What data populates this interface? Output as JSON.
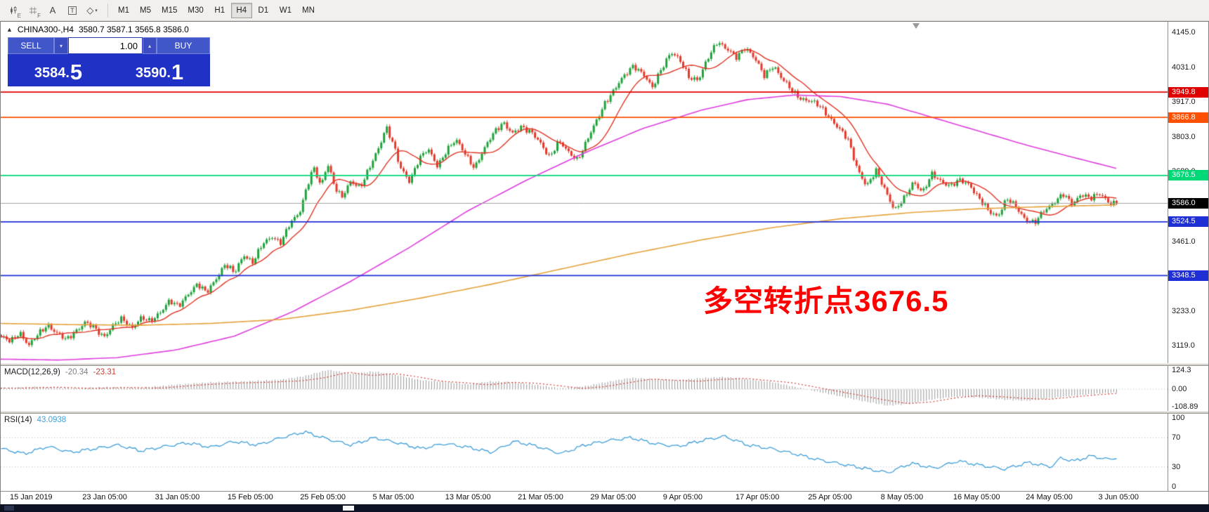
{
  "toolbar": {
    "icons": [
      {
        "name": "candlestick-tool-icon",
        "sub": "E"
      },
      {
        "name": "grid-tool-icon",
        "sub": "F"
      },
      {
        "name": "text-label-tool-icon",
        "glyph": "A"
      },
      {
        "name": "text-box-tool-icon",
        "glyph": "T",
        "boxed": true
      },
      {
        "name": "draw-tools-icon",
        "glyph": "◇",
        "caret": "▾"
      }
    ],
    "timeframes": [
      "M1",
      "M5",
      "M15",
      "M30",
      "H1",
      "H4",
      "D1",
      "W1",
      "MN"
    ],
    "active_timeframe": "H4"
  },
  "quote": {
    "collapse": "▲",
    "symbol": "CHINA300-,H4",
    "ohlc": "3580.7 3587.1 3565.8 3586.0"
  },
  "trade_panel": {
    "sell_label": "SELL",
    "buy_label": "BUY",
    "volume": "1.00",
    "spin_down": "▾",
    "spin_up": "▴",
    "sell_price": {
      "main": "3584.",
      "big": "5"
    },
    "buy_price": {
      "main": "3590.",
      "big": "1"
    }
  },
  "annotation": {
    "text": "多空转折点3676.5",
    "color": "#ff0000"
  },
  "chart_data": {
    "type": "candlestick",
    "symbol": "CHINA300-",
    "timeframe": "H4",
    "ohlc": {
      "open": 3580.7,
      "high": 3587.1,
      "low": 3565.8,
      "close": 3586.0
    },
    "y_axis": {
      "range": [
        3062,
        4180
      ],
      "tick_values": [
        4145,
        4031,
        3917,
        3803,
        3689,
        3575,
        3461,
        3347,
        3233,
        3119
      ],
      "ticks": [
        "4145.0",
        "4031.0",
        "3917.0",
        "3803.0",
        "3689.0",
        "3575.0",
        "3461.0",
        "3347.0",
        "3233.0",
        "3119.0"
      ]
    },
    "x_labels": [
      "15 Jan 2019",
      "23 Jan 05:00",
      "31 Jan 05:00",
      "15 Feb 05:00",
      "25 Feb 05:00",
      "5 Mar 05:00",
      "13 Mar 05:00",
      "21 Mar 05:00",
      "29 Mar 05:00",
      "9 Apr 05:00",
      "17 Apr 05:00",
      "25 Apr 05:00",
      "8 May 05:00",
      "16 May 05:00",
      "24 May 05:00",
      "3 Jun 05:00"
    ],
    "hlines": [
      {
        "price": 3949.8,
        "label": "3949.8",
        "color": "#e00000"
      },
      {
        "price": 3866.8,
        "label": "3866.8",
        "color": "#ff4f00"
      },
      {
        "price": 3676.5,
        "label": "3676.5",
        "color": "#00d878"
      },
      {
        "price": 3524.5,
        "label": "3524.5",
        "color": "#1f2fd6"
      },
      {
        "price": 3348.5,
        "label": "3348.5",
        "color": "#1f2fd6"
      }
    ],
    "current_price": {
      "value": 3586.0,
      "label": "3586.0",
      "badge_color": "#000000"
    },
    "colors": {
      "up": "#1fa13a",
      "down": "#e2392b",
      "ma_fast": "#e03424",
      "ma_mid": "#df3ddf",
      "ma_slow": "#e5a23b",
      "macd_bar": "#969696",
      "macd_signal": "#d23b2f",
      "rsi": "#3f9fd9",
      "current_line": "#a0a0a0",
      "level_line": "#b5b5b5"
    },
    "close_path": [
      [
        0,
        3148
      ],
      [
        0.008,
        3130
      ],
      [
        0.016,
        3165
      ],
      [
        0.024,
        3120
      ],
      [
        0.032,
        3155
      ],
      [
        0.04,
        3190
      ],
      [
        0.048,
        3160
      ],
      [
        0.056,
        3135
      ],
      [
        0.064,
        3170
      ],
      [
        0.072,
        3195
      ],
      [
        0.08,
        3175
      ],
      [
        0.088,
        3150
      ],
      [
        0.096,
        3185
      ],
      [
        0.104,
        3205
      ],
      [
        0.112,
        3180
      ],
      [
        0.12,
        3210
      ],
      [
        0.128,
        3195
      ],
      [
        0.136,
        3230
      ],
      [
        0.144,
        3265
      ],
      [
        0.152,
        3245
      ],
      [
        0.16,
        3290
      ],
      [
        0.168,
        3320
      ],
      [
        0.176,
        3290
      ],
      [
        0.184,
        3340
      ],
      [
        0.192,
        3385
      ],
      [
        0.2,
        3355
      ],
      [
        0.208,
        3420
      ],
      [
        0.216,
        3390
      ],
      [
        0.224,
        3450
      ],
      [
        0.232,
        3480
      ],
      [
        0.24,
        3455
      ],
      [
        0.248,
        3520
      ],
      [
        0.256,
        3560
      ],
      [
        0.262,
        3640
      ],
      [
        0.268,
        3700
      ],
      [
        0.274,
        3640
      ],
      [
        0.28,
        3720
      ],
      [
        0.286,
        3640
      ],
      [
        0.292,
        3600
      ],
      [
        0.3,
        3660
      ],
      [
        0.308,
        3640
      ],
      [
        0.316,
        3700
      ],
      [
        0.324,
        3770
      ],
      [
        0.33,
        3840
      ],
      [
        0.336,
        3780
      ],
      [
        0.342,
        3700
      ],
      [
        0.35,
        3660
      ],
      [
        0.358,
        3730
      ],
      [
        0.366,
        3760
      ],
      [
        0.374,
        3710
      ],
      [
        0.382,
        3760
      ],
      [
        0.39,
        3790
      ],
      [
        0.398,
        3750
      ],
      [
        0.406,
        3700
      ],
      [
        0.414,
        3760
      ],
      [
        0.422,
        3820
      ],
      [
        0.43,
        3850
      ],
      [
        0.438,
        3810
      ],
      [
        0.446,
        3840
      ],
      [
        0.454,
        3820
      ],
      [
        0.462,
        3780
      ],
      [
        0.47,
        3740
      ],
      [
        0.478,
        3790
      ],
      [
        0.486,
        3750
      ],
      [
        0.494,
        3730
      ],
      [
        0.502,
        3790
      ],
      [
        0.51,
        3850
      ],
      [
        0.518,
        3920
      ],
      [
        0.526,
        3960
      ],
      [
        0.534,
        4000
      ],
      [
        0.542,
        4040
      ],
      [
        0.55,
        4010
      ],
      [
        0.558,
        3960
      ],
      [
        0.566,
        4030
      ],
      [
        0.574,
        4080
      ],
      [
        0.582,
        4050
      ],
      [
        0.59,
        4000
      ],
      [
        0.598,
        3990
      ],
      [
        0.606,
        4060
      ],
      [
        0.614,
        4120
      ],
      [
        0.622,
        4090
      ],
      [
        0.63,
        4060
      ],
      [
        0.638,
        4100
      ],
      [
        0.646,
        4060
      ],
      [
        0.654,
        4000
      ],
      [
        0.662,
        4040
      ],
      [
        0.67,
        3990
      ],
      [
        0.678,
        3950
      ],
      [
        0.686,
        3930
      ],
      [
        0.694,
        3920
      ],
      [
        0.702,
        3900
      ],
      [
        0.71,
        3870
      ],
      [
        0.718,
        3830
      ],
      [
        0.726,
        3790
      ],
      [
        0.734,
        3700
      ],
      [
        0.742,
        3640
      ],
      [
        0.75,
        3690
      ],
      [
        0.758,
        3630
      ],
      [
        0.766,
        3560
      ],
      [
        0.774,
        3600
      ],
      [
        0.782,
        3660
      ],
      [
        0.79,
        3620
      ],
      [
        0.798,
        3680
      ],
      [
        0.806,
        3660
      ],
      [
        0.814,
        3640
      ],
      [
        0.822,
        3660
      ],
      [
        0.83,
        3650
      ],
      [
        0.838,
        3600
      ],
      [
        0.846,
        3560
      ],
      [
        0.854,
        3545
      ],
      [
        0.862,
        3600
      ],
      [
        0.87,
        3570
      ],
      [
        0.878,
        3535
      ],
      [
        0.886,
        3520
      ],
      [
        0.894,
        3560
      ],
      [
        0.902,
        3590
      ],
      [
        0.91,
        3615
      ],
      [
        0.918,
        3580
      ],
      [
        0.926,
        3620
      ],
      [
        0.934,
        3600
      ],
      [
        0.942,
        3615
      ],
      [
        0.95,
        3590
      ],
      [
        0.956,
        3586
      ]
    ],
    "ma_mid_path": [
      [
        0,
        3075
      ],
      [
        0.05,
        3072
      ],
      [
        0.1,
        3080
      ],
      [
        0.15,
        3105
      ],
      [
        0.2,
        3150
      ],
      [
        0.25,
        3230
      ],
      [
        0.3,
        3330
      ],
      [
        0.35,
        3440
      ],
      [
        0.4,
        3560
      ],
      [
        0.45,
        3660
      ],
      [
        0.5,
        3750
      ],
      [
        0.55,
        3830
      ],
      [
        0.6,
        3890
      ],
      [
        0.64,
        3925
      ],
      [
        0.68,
        3940
      ],
      [
        0.72,
        3935
      ],
      [
        0.76,
        3910
      ],
      [
        0.8,
        3865
      ],
      [
        0.84,
        3820
      ],
      [
        0.88,
        3775
      ],
      [
        0.92,
        3735
      ],
      [
        0.956,
        3700
      ]
    ],
    "ma_slow_path": [
      [
        0,
        3192
      ],
      [
        0.06,
        3188
      ],
      [
        0.12,
        3186
      ],
      [
        0.18,
        3192
      ],
      [
        0.24,
        3205
      ],
      [
        0.3,
        3235
      ],
      [
        0.36,
        3275
      ],
      [
        0.42,
        3320
      ],
      [
        0.48,
        3370
      ],
      [
        0.54,
        3420
      ],
      [
        0.6,
        3465
      ],
      [
        0.66,
        3505
      ],
      [
        0.72,
        3535
      ],
      [
        0.78,
        3555
      ],
      [
        0.84,
        3568
      ],
      [
        0.9,
        3575
      ],
      [
        0.956,
        3580
      ]
    ],
    "macd": {
      "name": "MACD(12,26,9)",
      "value_main": "-20.34",
      "value_signal": "-23.31",
      "range": [
        -132,
        142
      ],
      "ticks": [
        {
          "v": 124.3,
          "label": "124.3"
        },
        {
          "v": 0,
          "label": "0.00"
        },
        {
          "v": -108.89,
          "label": "-108.89"
        }
      ],
      "path": [
        [
          0,
          8
        ],
        [
          0.03,
          14
        ],
        [
          0.06,
          6
        ],
        [
          0.09,
          12
        ],
        [
          0.12,
          8
        ],
        [
          0.15,
          28
        ],
        [
          0.18,
          42
        ],
        [
          0.21,
          48
        ],
        [
          0.24,
          58
        ],
        [
          0.26,
          80
        ],
        [
          0.28,
          118
        ],
        [
          0.3,
          95
        ],
        [
          0.32,
          108
        ],
        [
          0.34,
          85
        ],
        [
          0.36,
          55
        ],
        [
          0.38,
          45
        ],
        [
          0.4,
          30
        ],
        [
          0.42,
          48
        ],
        [
          0.44,
          42
        ],
        [
          0.46,
          25
        ],
        [
          0.48,
          5
        ],
        [
          0.5,
          18
        ],
        [
          0.52,
          45
        ],
        [
          0.54,
          70
        ],
        [
          0.56,
          62
        ],
        [
          0.58,
          55
        ],
        [
          0.6,
          68
        ],
        [
          0.62,
          75
        ],
        [
          0.64,
          60
        ],
        [
          0.66,
          45
        ],
        [
          0.68,
          15
        ],
        [
          0.7,
          -15
        ],
        [
          0.72,
          -45
        ],
        [
          0.74,
          -75
        ],
        [
          0.76,
          -100
        ],
        [
          0.78,
          -88
        ],
        [
          0.8,
          -60
        ],
        [
          0.82,
          -45
        ],
        [
          0.84,
          -52
        ],
        [
          0.86,
          -64
        ],
        [
          0.88,
          -70
        ],
        [
          0.9,
          -55
        ],
        [
          0.92,
          -40
        ],
        [
          0.94,
          -28
        ],
        [
          0.956,
          -20
        ]
      ]
    },
    "rsi": {
      "name": "RSI(14)",
      "value": "43.0938",
      "range": [
        -3,
        103
      ],
      "levels": [
        70,
        30
      ],
      "ticks": [
        {
          "v": 100,
          "label": "100"
        },
        {
          "v": 70,
          "label": "70"
        },
        {
          "v": 30,
          "label": "30"
        },
        {
          "v": 0,
          "label": "0"
        }
      ],
      "path": [
        [
          0,
          55
        ],
        [
          0.02,
          48
        ],
        [
          0.04,
          58
        ],
        [
          0.06,
          50
        ],
        [
          0.08,
          55
        ],
        [
          0.1,
          60
        ],
        [
          0.12,
          52
        ],
        [
          0.14,
          58
        ],
        [
          0.16,
          63
        ],
        [
          0.18,
          57
        ],
        [
          0.2,
          65
        ],
        [
          0.22,
          60
        ],
        [
          0.24,
          70
        ],
        [
          0.26,
          78
        ],
        [
          0.28,
          68
        ],
        [
          0.3,
          60
        ],
        [
          0.32,
          70
        ],
        [
          0.34,
          63
        ],
        [
          0.36,
          55
        ],
        [
          0.38,
          62
        ],
        [
          0.4,
          57
        ],
        [
          0.42,
          50
        ],
        [
          0.44,
          65
        ],
        [
          0.46,
          58
        ],
        [
          0.48,
          48
        ],
        [
          0.5,
          60
        ],
        [
          0.52,
          66
        ],
        [
          0.54,
          70
        ],
        [
          0.56,
          62
        ],
        [
          0.58,
          58
        ],
        [
          0.6,
          66
        ],
        [
          0.62,
          72
        ],
        [
          0.64,
          60
        ],
        [
          0.66,
          55
        ],
        [
          0.68,
          48
        ],
        [
          0.7,
          40
        ],
        [
          0.72,
          34
        ],
        [
          0.74,
          28
        ],
        [
          0.76,
          22
        ],
        [
          0.78,
          35
        ],
        [
          0.8,
          28
        ],
        [
          0.82,
          38
        ],
        [
          0.84,
          32
        ],
        [
          0.86,
          27
        ],
        [
          0.88,
          36
        ],
        [
          0.9,
          30
        ],
        [
          0.908,
          42
        ],
        [
          0.92,
          38
        ],
        [
          0.934,
          45
        ],
        [
          0.95,
          40
        ],
        [
          0.956,
          43
        ]
      ]
    }
  }
}
